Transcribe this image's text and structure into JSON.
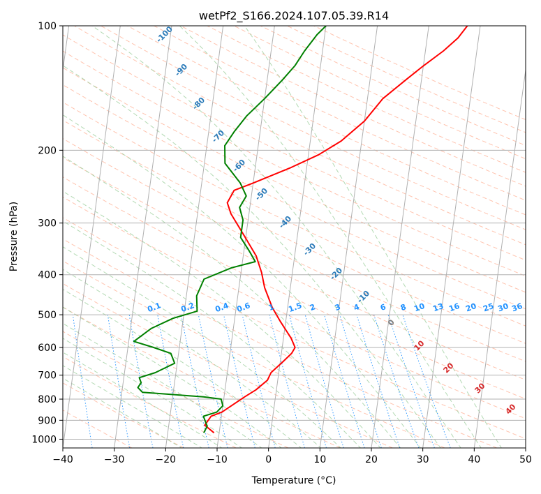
{
  "chart_data": {
    "type": "line",
    "chart_kind": "skew-T log-P diagram",
    "title": "wetPf2_S166.2024.107.05.39.R14",
    "xlabel": "Temperature (°C)",
    "ylabel": "Pressure (hPa)",
    "xlim": [
      -40,
      50
    ],
    "ylim": [
      1050,
      100
    ],
    "y_scale": "log",
    "grid": true,
    "x_ticks": [
      -40,
      -30,
      -20,
      -10,
      0,
      10,
      20,
      30,
      40,
      50
    ],
    "y_ticks": [
      100,
      200,
      300,
      400,
      500,
      600,
      700,
      800,
      900,
      1000
    ],
    "series": [
      {
        "role": "temperature",
        "color": "#ff0000",
        "points": [
          [
            -11,
            965
          ],
          [
            -13,
            925
          ],
          [
            -12,
            880
          ],
          [
            -10,
            860
          ],
          [
            -6,
            790
          ],
          [
            -4,
            760
          ],
          [
            -2,
            720
          ],
          [
            -1.5,
            690
          ],
          [
            0.5,
            650
          ],
          [
            2,
            620
          ],
          [
            2.5,
            600
          ],
          [
            1.5,
            570
          ],
          [
            -1,
            520
          ],
          [
            -3,
            480
          ],
          [
            -5,
            430
          ],
          [
            -6,
            395
          ],
          [
            -7.5,
            360
          ],
          [
            -10.5,
            320
          ],
          [
            -13.5,
            285
          ],
          [
            -14.5,
            268
          ],
          [
            -13.5,
            250
          ],
          [
            -10,
            240
          ],
          [
            -3,
            220
          ],
          [
            2,
            205
          ],
          [
            6,
            190
          ],
          [
            10,
            170
          ],
          [
            13,
            150
          ],
          [
            17,
            135
          ],
          [
            20,
            125
          ],
          [
            23.5,
            115
          ],
          [
            26,
            107
          ],
          [
            27.5,
            100
          ]
        ]
      },
      {
        "role": "dewpoint",
        "color": "#008000",
        "points": [
          [
            -13,
            965
          ],
          [
            -12.5,
            930
          ],
          [
            -13,
            905
          ],
          [
            -13.5,
            880
          ],
          [
            -11,
            860
          ],
          [
            -10,
            830
          ],
          [
            -10.5,
            800
          ],
          [
            -14,
            790
          ],
          [
            -26,
            770
          ],
          [
            -27,
            750
          ],
          [
            -26.5,
            730
          ],
          [
            -27,
            710
          ],
          [
            -24,
            690
          ],
          [
            -20.5,
            655
          ],
          [
            -21.5,
            620
          ],
          [
            -25,
            600
          ],
          [
            -29,
            580
          ],
          [
            -26,
            540
          ],
          [
            -22,
            510
          ],
          [
            -17.5,
            490
          ],
          [
            -18,
            450
          ],
          [
            -17,
            410
          ],
          [
            -12,
            385
          ],
          [
            -7.5,
            372
          ],
          [
            -9,
            350
          ],
          [
            -11,
            325
          ],
          [
            -11,
            295
          ],
          [
            -12,
            275
          ],
          [
            -11,
            258
          ],
          [
            -12.5,
            240
          ],
          [
            -16,
            215
          ],
          [
            -16.5,
            195
          ],
          [
            -15,
            180
          ],
          [
            -13,
            165
          ],
          [
            -10,
            150
          ],
          [
            -7,
            135
          ],
          [
            -5,
            125
          ],
          [
            -3.5,
            115
          ],
          [
            -1.5,
            105
          ],
          [
            0,
            100
          ]
        ]
      }
    ],
    "reference_lines": {
      "isotherm_color": "#b0b0b0",
      "isobar_color": "#b0b0b0",
      "dry_adiabat_color": "#ffb49a",
      "moist_adiabat_color": "#9fd09f",
      "mixing_ratio_color": "#1e90ff"
    },
    "dry_adiabat_labels": [
      "-100",
      "-90",
      "-80",
      "-70",
      "-60",
      "-50",
      "-40",
      "-30",
      "-20",
      "-10"
    ],
    "moist_adiabat_labels": [
      "0",
      "10",
      "20",
      "30",
      "40"
    ],
    "mixing_ratio_labels": [
      "0.1",
      "0.2",
      "0.4",
      "0.6",
      "1",
      "1.5",
      "2",
      "3",
      "4",
      "6",
      "8",
      "10",
      "13",
      "16",
      "20",
      "25",
      "30",
      "36"
    ]
  }
}
